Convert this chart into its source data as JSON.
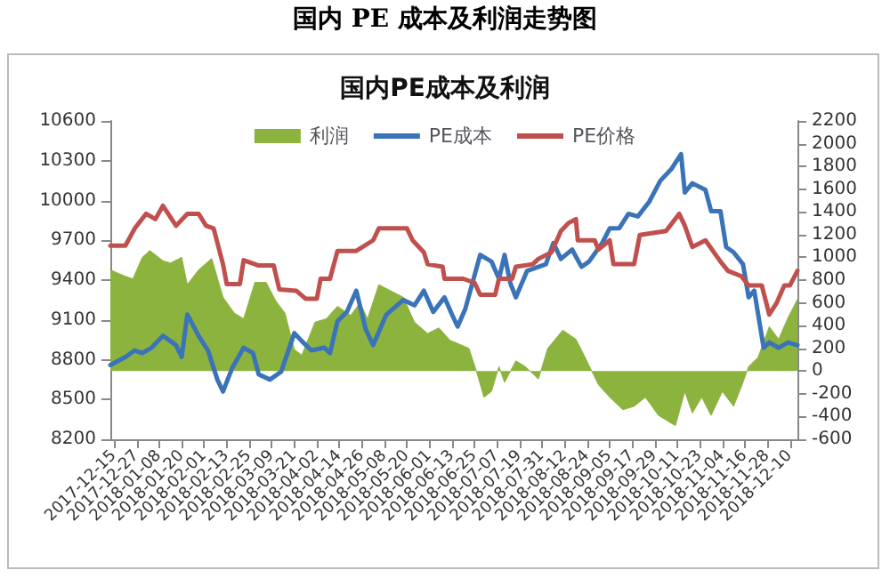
{
  "chart_data": {
    "type": "line",
    "title": "国内 PE 成本及利润走势图",
    "subtitle": "国内PE成本及利润",
    "xlim": [
      "2017-12-13",
      "2018-12-14"
    ],
    "xticks": [
      "2017-12-15",
      "2017-12-27",
      "2018-01-08",
      "2018-01-20",
      "2018-02-01",
      "2018-02-13",
      "2018-02-25",
      "2018-03-09",
      "2018-03-21",
      "2018-04-02",
      "2018-04-14",
      "2018-04-26",
      "2018-05-08",
      "2018-05-20",
      "2018-06-01",
      "2018-06-13",
      "2018-06-25",
      "2018-07-07",
      "2018-07-19",
      "2018-07-31",
      "2018-08-12",
      "2018-08-24",
      "2018-09-05",
      "2018-09-17",
      "2018-09-29",
      "2018-10-11",
      "2018-10-23",
      "2018-11-04",
      "2018-11-16",
      "2018-11-28",
      "2018-12-10"
    ],
    "ylim": [
      8200,
      10600
    ],
    "yticks": [
      8200,
      8500,
      8800,
      9100,
      9400,
      9700,
      10000,
      10300,
      10600
    ],
    "y2lim": [
      -600,
      2200
    ],
    "y2ticks": [
      -600,
      -400,
      -200,
      0,
      200,
      400,
      600,
      800,
      1000,
      1200,
      1400,
      1600,
      1800,
      2000,
      2200
    ],
    "legend": "top",
    "grid": false,
    "marker": "none",
    "line_style": "solid",
    "series": [
      {
        "name": "利润",
        "type": "area",
        "axis": "y2",
        "color": "#8db33f",
        "x": [
          "2017-12-13",
          "2017-12-20",
          "2017-12-25",
          "2017-12-30",
          "2018-01-03",
          "2018-01-10",
          "2018-01-14",
          "2018-01-20",
          "2018-01-23",
          "2018-01-29",
          "2018-02-05",
          "2018-02-11",
          "2018-02-17",
          "2018-02-22",
          "2018-02-28",
          "2018-03-06",
          "2018-03-11",
          "2018-03-16",
          "2018-03-21",
          "2018-03-25",
          "2018-04-01",
          "2018-04-07",
          "2018-04-13",
          "2018-04-20",
          "2018-04-25",
          "2018-04-29",
          "2018-05-05",
          "2018-05-12",
          "2018-05-18",
          "2018-05-24",
          "2018-05-31",
          "2018-06-06",
          "2018-06-12",
          "2018-06-15",
          "2018-06-22",
          "2018-06-26",
          "2018-06-30",
          "2018-07-04",
          "2018-07-08",
          "2018-07-11",
          "2018-07-17",
          "2018-07-22",
          "2018-07-29",
          "2018-08-03",
          "2018-08-11",
          "2018-08-18",
          "2018-08-22",
          "2018-08-30",
          "2018-09-05",
          "2018-09-12",
          "2018-09-18",
          "2018-09-24",
          "2018-10-01",
          "2018-10-10",
          "2018-10-15",
          "2018-10-19",
          "2018-10-24",
          "2018-10-29",
          "2018-11-04",
          "2018-11-10",
          "2018-11-15",
          "2018-11-18",
          "2018-11-23",
          "2018-11-29",
          "2018-12-04",
          "2018-12-09",
          "2018-12-14"
        ],
        "values": [
          890,
          840,
          810,
          1000,
          1060,
          970,
          950,
          1000,
          760,
          890,
          990,
          650,
          510,
          460,
          780,
          780,
          620,
          510,
          190,
          140,
          430,
          460,
          570,
          490,
          600,
          460,
          760,
          700,
          650,
          430,
          330,
          380,
          270,
          250,
          200,
          0,
          -230,
          -180,
          40,
          -100,
          90,
          40,
          -70,
          200,
          360,
          280,
          150,
          -120,
          -230,
          -340,
          -310,
          -230,
          -390,
          -480,
          -180,
          -370,
          -230,
          -390,
          -180,
          -310,
          -100,
          40,
          120,
          390,
          280,
          470,
          630
        ]
      },
      {
        "name": "PE成本",
        "color": "#3a73b8",
        "x": [
          "2017-12-13",
          "2017-12-21",
          "2017-12-26",
          "2017-12-30",
          "2018-01-04",
          "2018-01-10",
          "2018-01-17",
          "2018-01-20",
          "2018-01-23",
          "2018-01-29",
          "2018-02-03",
          "2018-02-08",
          "2018-02-11",
          "2018-02-16",
          "2018-02-22",
          "2018-02-27",
          "2018-03-02",
          "2018-03-08",
          "2018-03-14",
          "2018-03-21",
          "2018-03-25",
          "2018-03-30",
          "2018-04-06",
          "2018-04-09",
          "2018-04-13",
          "2018-04-18",
          "2018-04-23",
          "2018-04-28",
          "2018-05-02",
          "2018-05-09",
          "2018-05-18",
          "2018-05-24",
          "2018-05-29",
          "2018-06-03",
          "2018-06-09",
          "2018-06-13",
          "2018-06-16",
          "2018-06-20",
          "2018-06-28",
          "2018-07-04",
          "2018-07-08",
          "2018-07-11",
          "2018-07-14",
          "2018-07-17",
          "2018-07-23",
          "2018-08-02",
          "2018-08-06",
          "2018-08-10",
          "2018-08-16",
          "2018-08-21",
          "2018-08-25",
          "2018-09-01",
          "2018-09-05",
          "2018-09-10",
          "2018-09-15",
          "2018-09-20",
          "2018-09-26",
          "2018-10-02",
          "2018-10-08",
          "2018-10-13",
          "2018-10-15",
          "2018-10-19",
          "2018-10-26",
          "2018-10-29",
          "2018-11-03",
          "2018-11-06",
          "2018-11-10",
          "2018-11-15",
          "2018-11-18",
          "2018-11-21",
          "2018-11-26",
          "2018-11-29",
          "2018-12-04",
          "2018-12-09",
          "2018-12-14"
        ],
        "values": [
          8760,
          8820,
          8870,
          8850,
          8890,
          8980,
          8910,
          8820,
          9140,
          8980,
          8870,
          8650,
          8560,
          8740,
          8890,
          8850,
          8690,
          8650,
          8710,
          9000,
          8940,
          8870,
          8890,
          8850,
          9090,
          9160,
          9320,
          9030,
          8910,
          9140,
          9250,
          9210,
          9320,
          9160,
          9270,
          9140,
          9050,
          9180,
          9590,
          9540,
          9410,
          9590,
          9380,
          9270,
          9470,
          9520,
          9680,
          9560,
          9630,
          9500,
          9540,
          9680,
          9790,
          9790,
          9900,
          9880,
          9990,
          10150,
          10240,
          10350,
          10060,
          10130,
          10080,
          9920,
          9920,
          9650,
          9610,
          9520,
          9270,
          9320,
          8890,
          8930,
          8890,
          8930,
          8910
        ]
      },
      {
        "name": "PE价格",
        "color": "#c0504d",
        "x": [
          "2017-12-13",
          "2017-12-21",
          "2017-12-26",
          "2018-01-01",
          "2018-01-06",
          "2018-01-10",
          "2018-01-17",
          "2018-01-23",
          "2018-01-29",
          "2018-02-02",
          "2018-02-06",
          "2018-02-11",
          "2018-02-13",
          "2018-02-20",
          "2018-02-22",
          "2018-03-02",
          "2018-03-10",
          "2018-03-13",
          "2018-03-22",
          "2018-03-27",
          "2018-04-02",
          "2018-04-04",
          "2018-04-09",
          "2018-04-13",
          "2018-04-23",
          "2018-05-02",
          "2018-05-05",
          "2018-05-20",
          "2018-05-23",
          "2018-05-29",
          "2018-05-31",
          "2018-06-08",
          "2018-06-09",
          "2018-06-19",
          "2018-06-25",
          "2018-06-28",
          "2018-07-06",
          "2018-07-08",
          "2018-07-15",
          "2018-07-17",
          "2018-07-26",
          "2018-07-29",
          "2018-08-05",
          "2018-08-10",
          "2018-08-14",
          "2018-08-18",
          "2018-08-19",
          "2018-08-28",
          "2018-08-30",
          "2018-09-05",
          "2018-09-07",
          "2018-09-18",
          "2018-09-21",
          "2018-10-05",
          "2018-10-12",
          "2018-10-15",
          "2018-10-19",
          "2018-10-26",
          "2018-11-03",
          "2018-11-07",
          "2018-11-14",
          "2018-11-18",
          "2018-11-25",
          "2018-11-29",
          "2018-12-03",
          "2018-12-07",
          "2018-12-10",
          "2018-12-14"
        ],
        "values": [
          9660,
          9660,
          9790,
          9900,
          9860,
          9960,
          9810,
          9900,
          9900,
          9810,
          9790,
          9520,
          9370,
          9370,
          9550,
          9510,
          9510,
          9330,
          9320,
          9260,
          9260,
          9410,
          9410,
          9620,
          9620,
          9700,
          9790,
          9790,
          9700,
          9610,
          9520,
          9500,
          9410,
          9410,
          9380,
          9290,
          9290,
          9410,
          9410,
          9500,
          9520,
          9560,
          9610,
          9770,
          9830,
          9860,
          9700,
          9700,
          9630,
          9700,
          9520,
          9520,
          9740,
          9770,
          9900,
          9810,
          9650,
          9700,
          9540,
          9470,
          9430,
          9360,
          9360,
          9140,
          9230,
          9360,
          9360,
          9470
        ]
      }
    ]
  }
}
